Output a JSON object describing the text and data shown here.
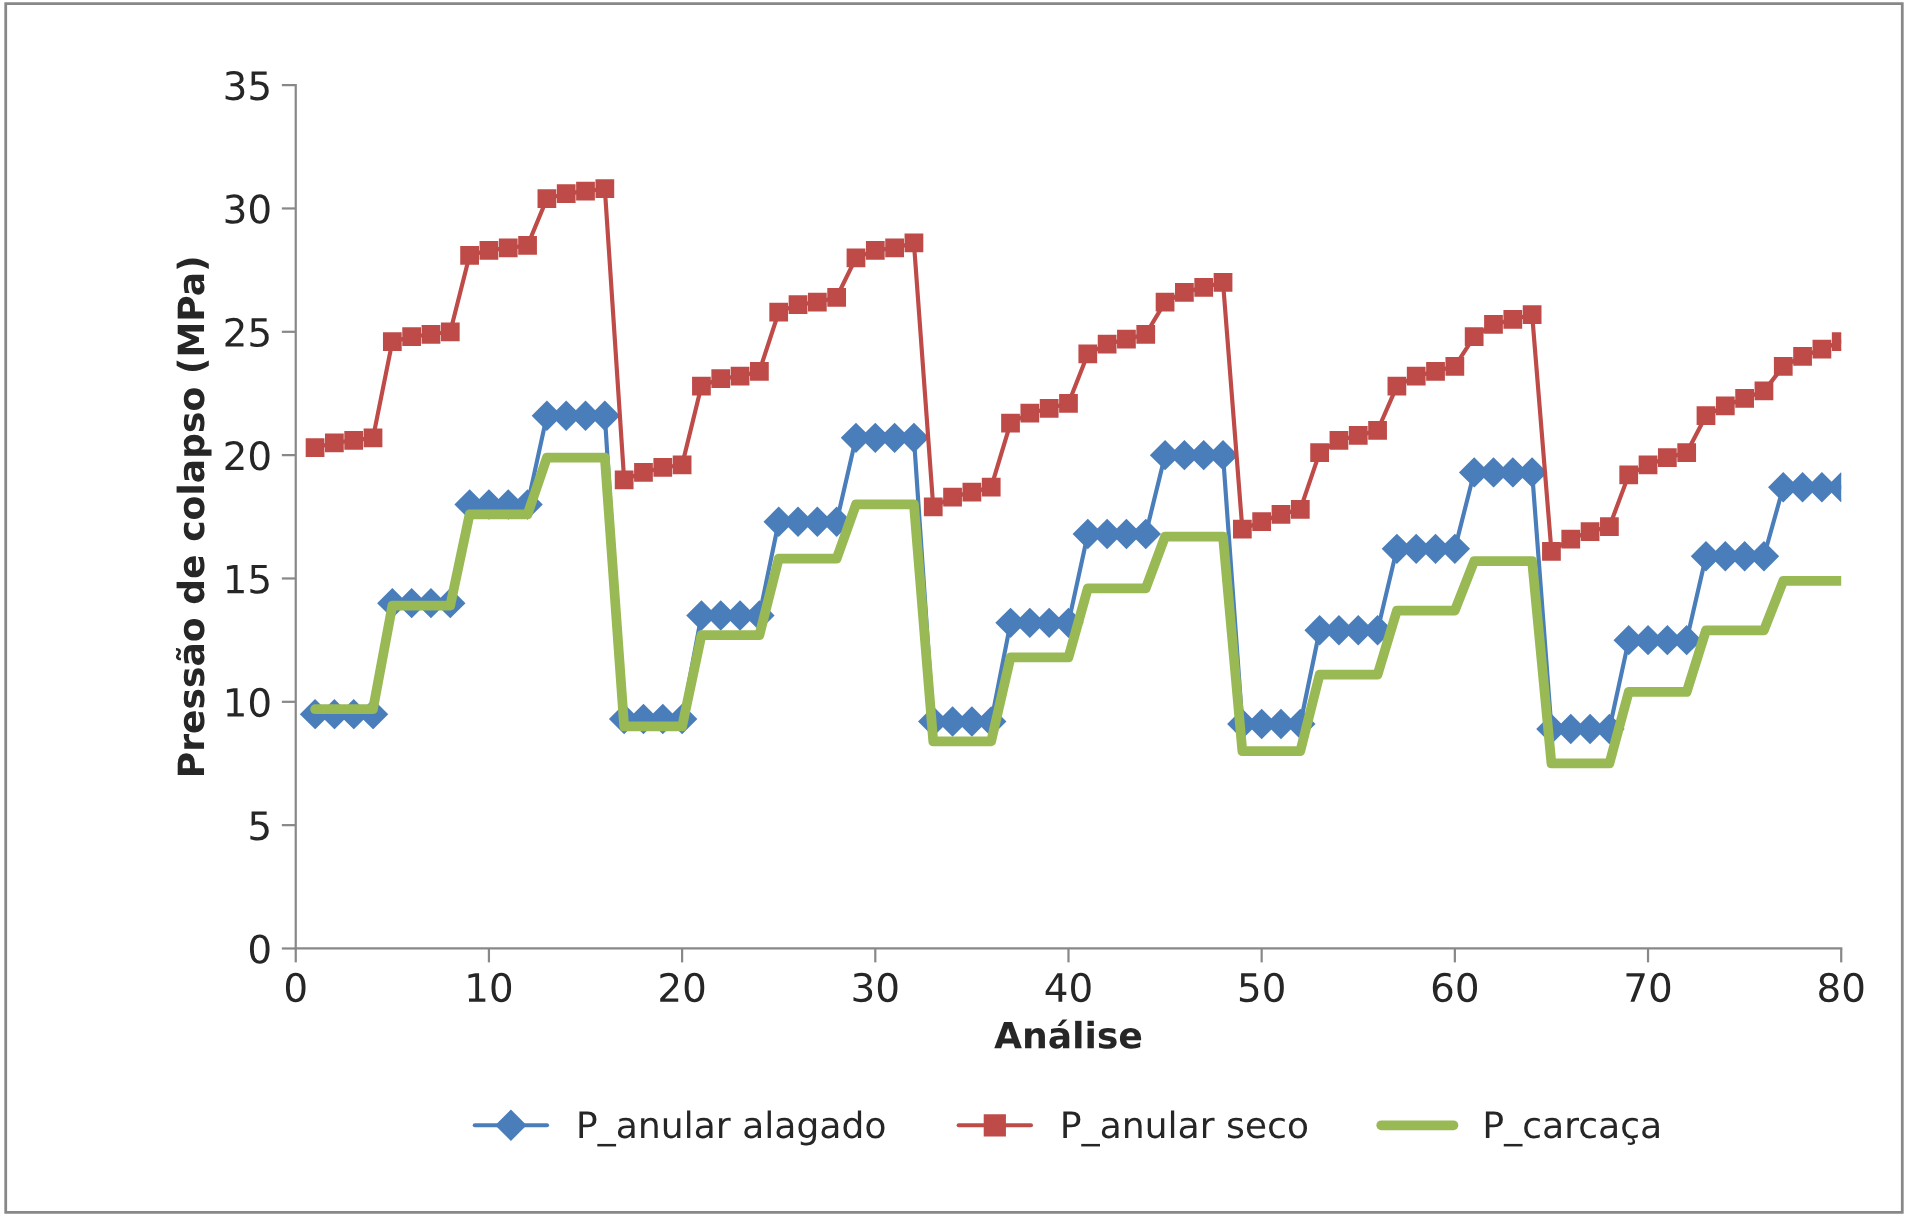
{
  "chart_data": {
    "type": "line",
    "xlabel": "Análise",
    "ylabel": "Pressão de colapso (MPa)",
    "x": [
      1,
      2,
      3,
      4,
      5,
      6,
      7,
      8,
      9,
      10,
      11,
      12,
      13,
      14,
      15,
      16,
      17,
      18,
      19,
      20,
      21,
      22,
      23,
      24,
      25,
      26,
      27,
      28,
      29,
      30,
      31,
      32,
      33,
      34,
      35,
      36,
      37,
      38,
      39,
      40,
      41,
      42,
      43,
      44,
      45,
      46,
      47,
      48,
      49,
      50,
      51,
      52,
      53,
      54,
      55,
      56,
      57,
      58,
      59,
      60,
      61,
      62,
      63,
      64,
      65,
      66,
      67,
      68,
      69,
      70,
      71,
      72,
      73,
      74,
      75,
      76,
      77,
      78,
      79,
      80
    ],
    "series": [
      {
        "name": "P_anular alagado",
        "color": "#4a7ebb",
        "marker": "diamond",
        "values": [
          9.5,
          9.5,
          9.5,
          9.5,
          14.0,
          14.0,
          14.0,
          14.0,
          18.0,
          18.0,
          18.0,
          18.0,
          21.6,
          21.6,
          21.6,
          21.6,
          9.3,
          9.3,
          9.3,
          9.3,
          13.5,
          13.5,
          13.5,
          13.5,
          17.3,
          17.3,
          17.3,
          17.3,
          20.7,
          20.7,
          20.7,
          20.7,
          9.2,
          9.2,
          9.2,
          9.2,
          13.2,
          13.2,
          13.2,
          13.2,
          16.8,
          16.8,
          16.8,
          16.8,
          20.0,
          20.0,
          20.0,
          20.0,
          9.1,
          9.1,
          9.1,
          9.1,
          12.9,
          12.9,
          12.9,
          12.9,
          16.2,
          16.2,
          16.2,
          16.2,
          19.3,
          19.3,
          19.3,
          19.3,
          8.9,
          8.9,
          8.9,
          8.9,
          12.5,
          12.5,
          12.5,
          12.5,
          15.9,
          15.9,
          15.9,
          15.9,
          18.7,
          18.7,
          18.7,
          18.7
        ]
      },
      {
        "name": "P_anular seco",
        "color": "#be4b48",
        "marker": "square",
        "values": [
          20.3,
          20.5,
          20.6,
          20.7,
          24.6,
          24.8,
          24.9,
          25.0,
          28.1,
          28.3,
          28.4,
          28.5,
          30.4,
          30.6,
          30.7,
          30.8,
          19.0,
          19.3,
          19.5,
          19.6,
          22.8,
          23.1,
          23.2,
          23.4,
          25.8,
          26.1,
          26.2,
          26.4,
          28.0,
          28.3,
          28.4,
          28.6,
          17.9,
          18.3,
          18.5,
          18.7,
          21.3,
          21.7,
          21.9,
          22.1,
          24.1,
          24.5,
          24.7,
          24.9,
          26.2,
          26.6,
          26.8,
          27.0,
          17.0,
          17.3,
          17.6,
          17.8,
          20.1,
          20.6,
          20.8,
          21.0,
          22.8,
          23.2,
          23.4,
          23.6,
          24.8,
          25.3,
          25.5,
          25.7,
          16.1,
          16.6,
          16.9,
          17.1,
          19.2,
          19.6,
          19.9,
          20.1,
          21.6,
          22.0,
          22.3,
          22.6,
          23.6,
          24.0,
          24.3,
          24.6
        ]
      },
      {
        "name": "P_carcaça",
        "color": "#98b954",
        "marker": "none",
        "values": [
          9.7,
          9.7,
          9.7,
          9.7,
          13.9,
          13.9,
          13.9,
          13.9,
          17.6,
          17.6,
          17.6,
          17.6,
          19.9,
          19.9,
          19.9,
          19.9,
          9.0,
          9.0,
          9.0,
          9.0,
          12.7,
          12.7,
          12.7,
          12.7,
          15.8,
          15.8,
          15.8,
          15.8,
          18.0,
          18.0,
          18.0,
          18.0,
          8.4,
          8.4,
          8.4,
          8.4,
          11.8,
          11.8,
          11.8,
          11.8,
          14.6,
          14.6,
          14.6,
          14.6,
          16.7,
          16.7,
          16.7,
          16.7,
          8.0,
          8.0,
          8.0,
          8.0,
          11.1,
          11.1,
          11.1,
          11.1,
          13.7,
          13.7,
          13.7,
          13.7,
          15.7,
          15.7,
          15.7,
          15.7,
          7.5,
          7.5,
          7.5,
          7.5,
          10.4,
          10.4,
          10.4,
          10.4,
          12.9,
          12.9,
          12.9,
          12.9,
          14.9,
          14.9,
          14.9,
          14.9
        ]
      }
    ],
    "xlim": [
      0,
      80
    ],
    "xticks": [
      0,
      10,
      20,
      30,
      40,
      50,
      60,
      70,
      80
    ],
    "ylim": [
      0,
      35
    ],
    "yticks": [
      0,
      5,
      10,
      15,
      20,
      25,
      30,
      35
    ],
    "grid": false,
    "legend": "bottom"
  }
}
